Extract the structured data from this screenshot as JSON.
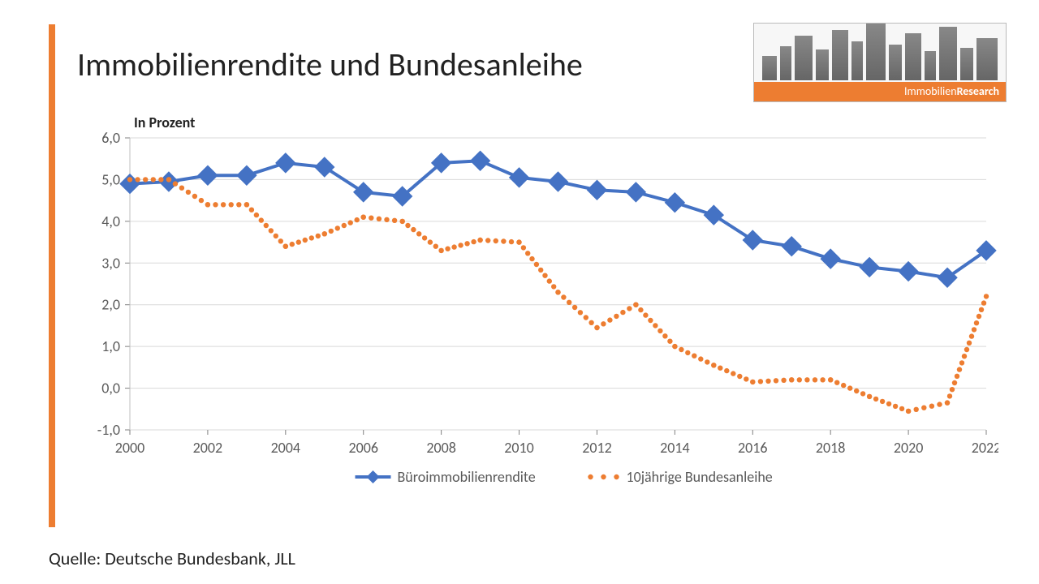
{
  "title": "Immobilienrendite und Bundesanleihe",
  "subtitle": "In Prozent",
  "source": "Quelle: Deutsche Bundesbank, JLL",
  "logo": {
    "brand_prefix": "Immobilien",
    "brand_suffix": "Research"
  },
  "chart": {
    "type": "line",
    "background_color": "#ffffff",
    "plot_background": "#ffffff",
    "grid_color": "#d9d9d9",
    "axis_color": "#bfbfbf",
    "tick_color": "#808080",
    "axis_font_size": 18,
    "axis_font_color": "#595959",
    "legend_font_size": 18,
    "legend_font_color": "#595959",
    "ylim": [
      -1.0,
      6.0
    ],
    "ytick_step": 1.0,
    "ytick_format": "comma_decimal_1",
    "xlabels": [
      "2000",
      "2002",
      "2004",
      "2006",
      "2008",
      "2010",
      "2012",
      "2014",
      "2016",
      "2018",
      "2020",
      "2022"
    ],
    "x_years": [
      2000,
      2001,
      2002,
      2003,
      2004,
      2005,
      2006,
      2007,
      2008,
      2009,
      2010,
      2011,
      2012,
      2013,
      2014,
      2015,
      2016,
      2017,
      2018,
      2019,
      2020,
      2021,
      2022
    ],
    "series": [
      {
        "name": "Büroimmobilienrendite",
        "color": "#4472c4",
        "line_width": 4,
        "marker": "diamond",
        "marker_size": 12,
        "marker_fill": "#4472c4",
        "marker_stroke": "#4472c4",
        "values": [
          4.9,
          4.95,
          5.1,
          5.1,
          5.4,
          5.3,
          4.7,
          4.6,
          5.4,
          5.45,
          5.05,
          4.95,
          4.75,
          4.7,
          4.45,
          4.15,
          3.55,
          3.4,
          3.1,
          2.9,
          2.8,
          2.65,
          3.3
        ]
      },
      {
        "name": "10jährige Bundesanleihe",
        "color": "#ed7d31",
        "line_width": 0,
        "dotted": true,
        "dot_size": 3.2,
        "values": [
          5.0,
          5.0,
          4.4,
          4.4,
          3.4,
          3.7,
          4.1,
          4.0,
          3.3,
          3.55,
          3.5,
          2.3,
          1.45,
          2.0,
          1.0,
          0.55,
          0.15,
          0.2,
          0.2,
          -0.2,
          -0.55,
          -0.35,
          2.2
        ]
      }
    ],
    "legend": {
      "items": [
        {
          "label": "Büroimmobilienrendite",
          "type": "line_diamond",
          "color": "#4472c4"
        },
        {
          "label": "10jährige Bundesanleihe",
          "type": "dots",
          "color": "#ed7d31"
        }
      ]
    }
  }
}
